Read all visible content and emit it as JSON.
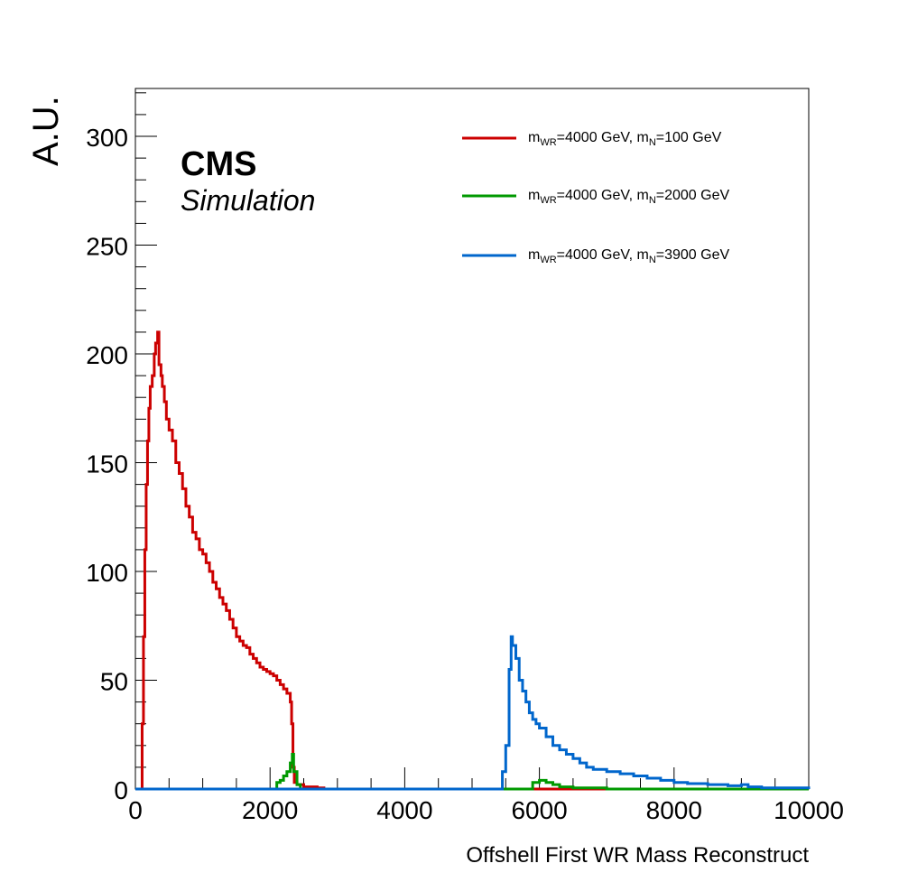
{
  "chart_data": {
    "type": "line",
    "xlabel": "Offshell First WR Mass Reconstruct",
    "ylabel": "A.U.",
    "xlim": [
      0,
      10000
    ],
    "ylim": [
      0,
      322
    ],
    "x_ticks": [
      0,
      2000,
      4000,
      6000,
      8000,
      10000
    ],
    "y_ticks": [
      0,
      50,
      100,
      150,
      200,
      250,
      300
    ],
    "grid": false,
    "legend_position": "top-right",
    "annotations": {
      "experiment": "CMS",
      "status": "Simulation"
    },
    "series": [
      {
        "name": "m_WR=4000 GeV, m_N=100 GeV",
        "legend": {
          "m1": "m",
          "sub1": "WR",
          "mid": "=4000 GeV, m",
          "sub2": "N",
          "tail": "=100 GeV"
        },
        "color": "#cc0000",
        "x": [
          0,
          80,
          100,
          120,
          140,
          160,
          180,
          200,
          220,
          250,
          280,
          300,
          330,
          350,
          380,
          400,
          430,
          460,
          500,
          550,
          600,
          650,
          700,
          750,
          800,
          850,
          900,
          950,
          1000,
          1050,
          1100,
          1150,
          1200,
          1250,
          1300,
          1350,
          1400,
          1450,
          1500,
          1550,
          1600,
          1650,
          1700,
          1750,
          1800,
          1850,
          1900,
          1950,
          2000,
          2050,
          2100,
          2150,
          2200,
          2250,
          2300,
          2320,
          2340,
          2360,
          2400,
          2500,
          2600,
          2700,
          2800,
          10000
        ],
        "y": [
          0,
          0,
          30,
          70,
          110,
          140,
          160,
          175,
          185,
          190,
          200,
          205,
          210,
          195,
          190,
          185,
          178,
          170,
          165,
          160,
          150,
          145,
          138,
          130,
          125,
          118,
          115,
          110,
          108,
          104,
          100,
          95,
          92,
          88,
          85,
          82,
          78,
          74,
          70,
          68,
          66,
          65,
          62,
          60,
          58,
          56,
          55,
          54,
          53,
          52,
          50,
          48,
          46,
          44,
          40,
          30,
          10,
          3,
          2,
          1,
          1,
          0.5,
          0,
          0
        ]
      },
      {
        "name": "m_WR=4000 GeV, m_N=2000 GeV",
        "legend": {
          "m1": "m",
          "sub1": "WR",
          "mid": "=4000 GeV, m",
          "sub2": "N",
          "tail": "=2000 GeV"
        },
        "color": "#009900",
        "x": [
          0,
          2050,
          2100,
          2150,
          2200,
          2250,
          2300,
          2330,
          2350,
          2400,
          2450,
          5800,
          5900,
          6000,
          6100,
          6200,
          6300,
          6500,
          7000,
          10000
        ],
        "y": [
          0,
          0,
          3,
          4,
          6,
          8,
          12,
          16,
          8,
          2,
          0,
          0,
          3,
          4,
          3,
          2,
          1,
          0.5,
          0,
          0
        ]
      },
      {
        "name": "m_WR=4000 GeV, m_N=3900 GeV",
        "legend": {
          "m1": "m",
          "sub1": "WR",
          "mid": "=4000 GeV, m",
          "sub2": "N",
          "tail": "=3900 GeV"
        },
        "color": "#0066cc",
        "x": [
          0,
          5400,
          5450,
          5500,
          5550,
          5580,
          5600,
          5650,
          5700,
          5750,
          5800,
          5850,
          5900,
          5950,
          6000,
          6100,
          6200,
          6300,
          6400,
          6500,
          6600,
          6700,
          6800,
          7000,
          7200,
          7400,
          7600,
          7800,
          8000,
          8200,
          8500,
          8800,
          9000,
          9100,
          9300,
          10000
        ],
        "y": [
          0,
          0,
          8,
          20,
          55,
          70,
          66,
          60,
          50,
          45,
          40,
          35,
          32,
          30,
          28,
          24,
          20,
          18,
          16,
          14,
          12,
          10,
          9,
          8,
          7,
          6,
          5,
          4,
          3,
          2.5,
          2,
          1.5,
          2,
          1,
          0.5,
          0
        ]
      }
    ]
  }
}
